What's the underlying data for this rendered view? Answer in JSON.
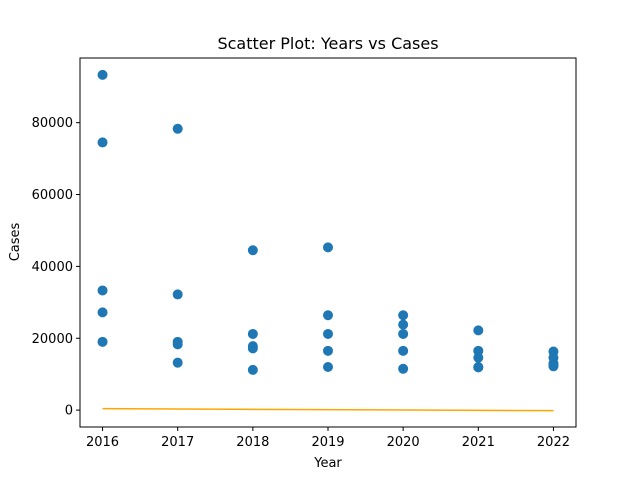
{
  "chart_data": {
    "type": "scatter",
    "title": "Scatter Plot: Years vs Cases",
    "xlabel": "Year",
    "ylabel": "Cases",
    "xlim": [
      2015.7,
      2022.3
    ],
    "ylim": [
      -4700,
      98000
    ],
    "xticks": [
      2016,
      2017,
      2018,
      2019,
      2020,
      2021,
      2022
    ],
    "yticks": [
      0,
      20000,
      40000,
      60000,
      80000
    ],
    "grid": false,
    "colors": {
      "points": "#1f77b4",
      "trend": "#ffa500"
    },
    "points": [
      {
        "x": 2016,
        "y": 93300
      },
      {
        "x": 2016,
        "y": 74500
      },
      {
        "x": 2016,
        "y": 33300
      },
      {
        "x": 2016,
        "y": 27200
      },
      {
        "x": 2016,
        "y": 19000
      },
      {
        "x": 2017,
        "y": 78300
      },
      {
        "x": 2017,
        "y": 32200
      },
      {
        "x": 2017,
        "y": 19000
      },
      {
        "x": 2017,
        "y": 18300
      },
      {
        "x": 2017,
        "y": 13200
      },
      {
        "x": 2018,
        "y": 44500
      },
      {
        "x": 2018,
        "y": 21200
      },
      {
        "x": 2018,
        "y": 17800
      },
      {
        "x": 2018,
        "y": 17200
      },
      {
        "x": 2018,
        "y": 11200
      },
      {
        "x": 2019,
        "y": 45300
      },
      {
        "x": 2019,
        "y": 26400
      },
      {
        "x": 2019,
        "y": 21200
      },
      {
        "x": 2019,
        "y": 16500
      },
      {
        "x": 2019,
        "y": 12000
      },
      {
        "x": 2020,
        "y": 26400
      },
      {
        "x": 2020,
        "y": 23800
      },
      {
        "x": 2020,
        "y": 21200
      },
      {
        "x": 2020,
        "y": 16500
      },
      {
        "x": 2020,
        "y": 11500
      },
      {
        "x": 2021,
        "y": 22200
      },
      {
        "x": 2021,
        "y": 16500
      },
      {
        "x": 2021,
        "y": 14600
      },
      {
        "x": 2021,
        "y": 12000
      },
      {
        "x": 2021,
        "y": 11900
      },
      {
        "x": 2022,
        "y": 16300
      },
      {
        "x": 2022,
        "y": 14600
      },
      {
        "x": 2022,
        "y": 13000
      },
      {
        "x": 2022,
        "y": 12400
      },
      {
        "x": 2022,
        "y": 12200
      }
    ],
    "trend_line": [
      {
        "x": 2016,
        "y": 400
      },
      {
        "x": 2022,
        "y": -150
      }
    ]
  }
}
